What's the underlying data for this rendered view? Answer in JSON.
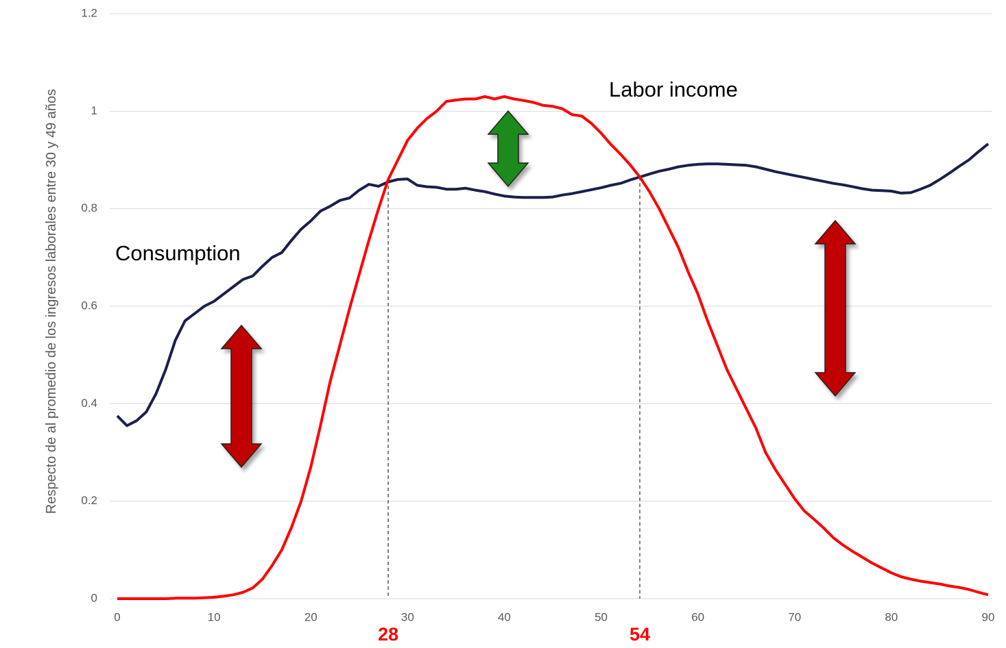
{
  "chart_data": {
    "type": "line",
    "y_label": "Respecto de al promedio de los ingresos laborales entre 30 y 49 años",
    "annotations": [
      "Consumption",
      "Labor income"
    ],
    "markers": [
      28,
      54
    ],
    "x": [
      0,
      1,
      2,
      3,
      4,
      5,
      6,
      7,
      8,
      9,
      10,
      11,
      12,
      13,
      14,
      15,
      16,
      17,
      18,
      19,
      20,
      21,
      22,
      23,
      24,
      25,
      26,
      27,
      28,
      29,
      30,
      31,
      32,
      33,
      34,
      35,
      36,
      37,
      38,
      39,
      40,
      41,
      42,
      43,
      44,
      45,
      46,
      47,
      48,
      49,
      50,
      51,
      52,
      53,
      54,
      55,
      56,
      57,
      58,
      59,
      60,
      61,
      62,
      63,
      64,
      65,
      66,
      67,
      68,
      69,
      70,
      71,
      72,
      73,
      74,
      75,
      76,
      77,
      78,
      79,
      80,
      81,
      82,
      83,
      84,
      85,
      86,
      87,
      88,
      89,
      90
    ],
    "series": [
      {
        "name": "Consumption",
        "color": "#1b1f4d",
        "values": [
          0.375,
          0.355,
          0.365,
          0.383,
          0.42,
          0.47,
          0.53,
          0.57,
          0.585,
          0.6,
          0.61,
          0.625,
          0.64,
          0.655,
          0.662,
          0.682,
          0.7,
          0.71,
          0.735,
          0.758,
          0.775,
          0.795,
          0.805,
          0.817,
          0.822,
          0.838,
          0.85,
          0.846,
          0.855,
          0.86,
          0.861,
          0.848,
          0.845,
          0.844,
          0.84,
          0.84,
          0.842,
          0.838,
          0.835,
          0.83,
          0.826,
          0.824,
          0.823,
          0.823,
          0.823,
          0.824,
          0.828,
          0.831,
          0.835,
          0.839,
          0.843,
          0.848,
          0.852,
          0.859,
          0.865,
          0.871,
          0.877,
          0.881,
          0.886,
          0.889,
          0.891,
          0.892,
          0.892,
          0.891,
          0.89,
          0.889,
          0.886,
          0.881,
          0.876,
          0.872,
          0.868,
          0.864,
          0.86,
          0.856,
          0.852,
          0.849,
          0.845,
          0.841,
          0.838,
          0.837,
          0.836,
          0.832,
          0.833,
          0.84,
          0.848,
          0.86,
          0.873,
          0.887,
          0.9,
          0.917,
          0.933
        ]
      },
      {
        "name": "Labor income",
        "color": "#ff0000",
        "values": [
          0,
          0,
          0,
          0,
          0,
          0,
          0.001,
          0.001,
          0.001,
          0.002,
          0.003,
          0.005,
          0.008,
          0.013,
          0.022,
          0.04,
          0.068,
          0.1,
          0.146,
          0.2,
          0.27,
          0.355,
          0.445,
          0.52,
          0.595,
          0.665,
          0.735,
          0.8,
          0.86,
          0.9,
          0.94,
          0.965,
          0.985,
          1.0,
          1.02,
          1.023,
          1.025,
          1.025,
          1.03,
          1.025,
          1.03,
          1.025,
          1.022,
          1.018,
          1.012,
          1.01,
          1.005,
          0.993,
          0.99,
          0.975,
          0.955,
          0.932,
          0.912,
          0.89,
          0.865,
          0.835,
          0.8,
          0.76,
          0.72,
          0.67,
          0.625,
          0.57,
          0.52,
          0.47,
          0.43,
          0.39,
          0.35,
          0.3,
          0.265,
          0.235,
          0.205,
          0.18,
          0.163,
          0.145,
          0.125,
          0.11,
          0.097,
          0.085,
          0.073,
          0.063,
          0.053,
          0.045,
          0.04,
          0.036,
          0.033,
          0.03,
          0.026,
          0.023,
          0.019,
          0.013,
          0.008
        ]
      }
    ],
    "xlim": [
      0,
      90
    ],
    "xticks": [
      0,
      10,
      20,
      30,
      40,
      50,
      60,
      70,
      80,
      90
    ],
    "ylim": [
      0,
      1.2
    ],
    "yticks": [
      0,
      0.2,
      0.4,
      0.6,
      0.8,
      1,
      1.2
    ],
    "grid": true
  }
}
